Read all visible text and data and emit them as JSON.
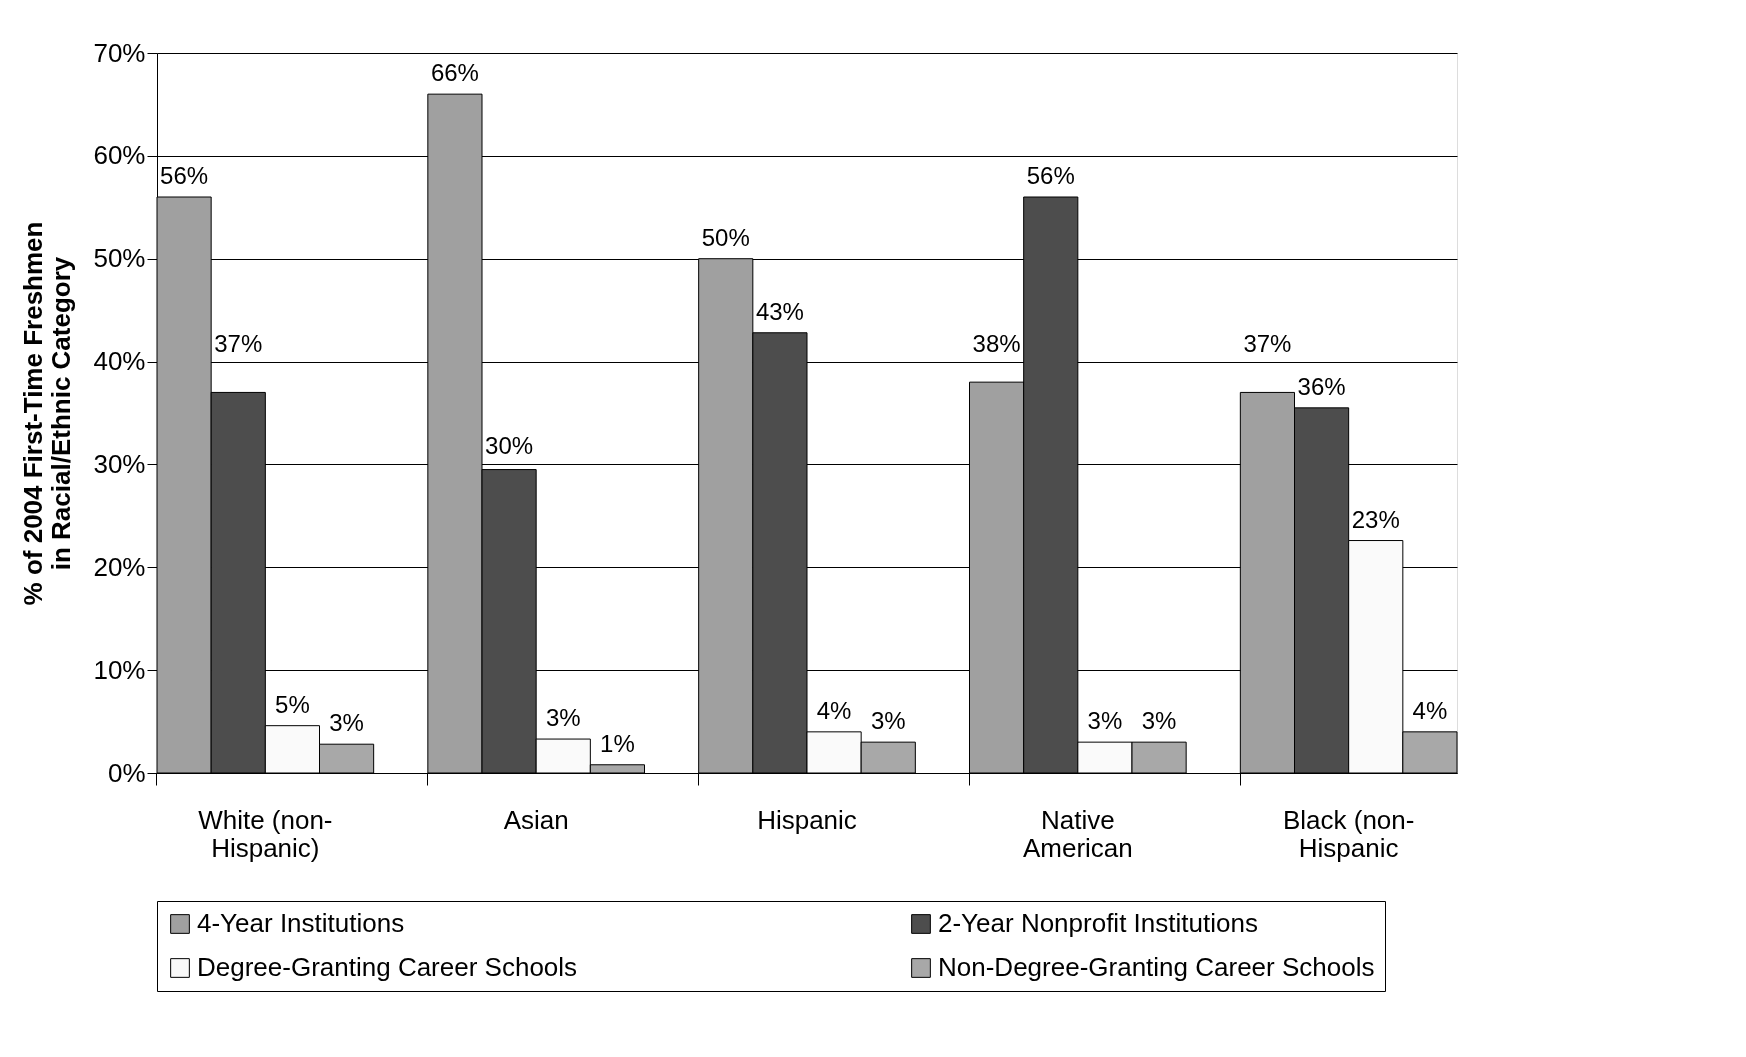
{
  "chart_data": {
    "type": "bar",
    "ylabel": "% of 2004 First-Time Freshmen\nin Racial/Ethnic Category",
    "categories": [
      "White (non-\nHispanic)",
      "Asian",
      "Hispanic",
      "Native\nAmerican",
      "Black (non-\nHispanic"
    ],
    "series": [
      {
        "name": "4-Year Institutions",
        "color": "#a0a0a0",
        "values": [
          56,
          66,
          50,
          38,
          37
        ],
        "value_labels": [
          "56%",
          "66%",
          "50%",
          "38%",
          "37%"
        ]
      },
      {
        "name": "2-Year Nonprofit Institutions",
        "color": "#4d4d4d",
        "values": [
          37,
          29.5,
          42.8,
          56,
          35.5
        ],
        "value_labels": [
          "37%",
          "30%",
          "43%",
          "56%",
          "36%"
        ]
      },
      {
        "name": "Degree-Granting Career Schools",
        "color": "#fafafa",
        "values": [
          4.6,
          3.3,
          4,
          3,
          22.6
        ],
        "value_labels": [
          "5%",
          "3%",
          "4%",
          "3%",
          "23%"
        ]
      },
      {
        "name": "Non-Degree-Granting Career Schools",
        "color": "#a8a8a8",
        "values": [
          2.8,
          0.8,
          3,
          3,
          4
        ],
        "value_labels": [
          "3%",
          "1%",
          "3%",
          "3%",
          "4%"
        ]
      }
    ],
    "ylim": [
      0,
      70
    ],
    "yticks": [
      {
        "value": 0,
        "label": "0%"
      },
      {
        "value": 10,
        "label": "10%"
      },
      {
        "value": 20,
        "label": "20%"
      },
      {
        "value": 30,
        "label": "30%"
      },
      {
        "value": 40,
        "label": "40%"
      },
      {
        "value": 50,
        "label": "50%"
      },
      {
        "value": 60,
        "label": "60%"
      },
      {
        "value": 70,
        "label": "70%"
      }
    ],
    "grid": "y",
    "legend": "bottom"
  }
}
